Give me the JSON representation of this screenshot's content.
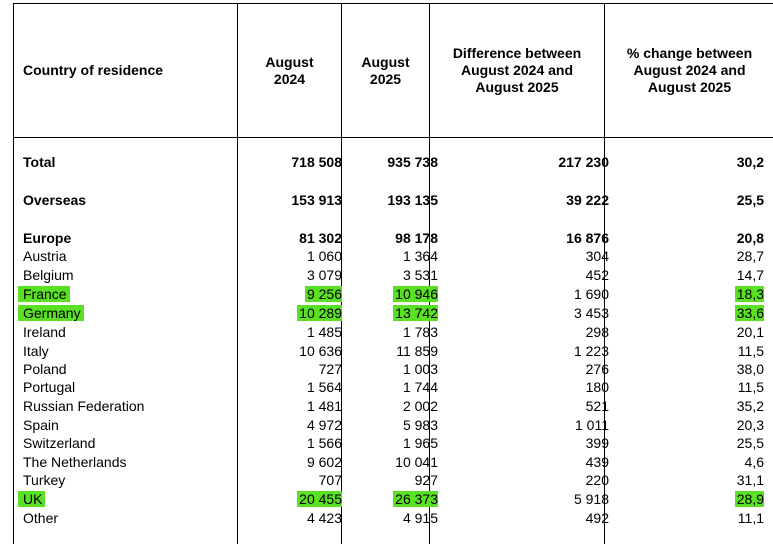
{
  "headers": {
    "country": "Country of residence",
    "aug2024": "August\n2024",
    "aug2025": "August\n2025",
    "difference": "Difference between\nAugust 2024 and\nAugust 2025",
    "pct_change": "% change between\nAugust 2024 and\nAugust 2025"
  },
  "rows": [
    {
      "name": "Total",
      "a": "718 508",
      "b": "935 738",
      "d": "217 230",
      "p": "30,2"
    },
    {
      "name": "Overseas",
      "a": "153 913",
      "b": "193 135",
      "d": "39 222",
      "p": "25,5"
    },
    {
      "name": "Europe",
      "a": "81 302",
      "b": "98 178",
      "d": "16 876",
      "p": "20,8"
    },
    {
      "name": "Austria",
      "a": "1 060",
      "b": "1 364",
      "d": "304",
      "p": "28,7"
    },
    {
      "name": "Belgium",
      "a": "3 079",
      "b": "3 531",
      "d": "452",
      "p": "14,7"
    },
    {
      "name": "France",
      "a": "9 256",
      "b": "10 946",
      "d": "1 690",
      "p": "18,3"
    },
    {
      "name": "Germany",
      "a": "10 289",
      "b": "13 742",
      "d": "3 453",
      "p": "33,6"
    },
    {
      "name": "Ireland",
      "a": "1 485",
      "b": "1 783",
      "d": "298",
      "p": "20,1"
    },
    {
      "name": "Italy",
      "a": "10 636",
      "b": "11 859",
      "d": "1 223",
      "p": "11,5"
    },
    {
      "name": "Poland",
      "a": "727",
      "b": "1 003",
      "d": "276",
      "p": "38,0"
    },
    {
      "name": "Portugal",
      "a": "1 564",
      "b": "1 744",
      "d": "180",
      "p": "11,5"
    },
    {
      "name": "Russian Federation",
      "a": "1 481",
      "b": "2 002",
      "d": "521",
      "p": "35,2"
    },
    {
      "name": "Spain",
      "a": "4 972",
      "b": "5 983",
      "d": "1 011",
      "p": "20,3"
    },
    {
      "name": "Switzerland",
      "a": "1 566",
      "b": "1 965",
      "d": "399",
      "p": "25,5"
    },
    {
      "name": "The Netherlands",
      "a": "9 602",
      "b": "10 041",
      "d": "439",
      "p": "4,6"
    },
    {
      "name": "Turkey",
      "a": "707",
      "b": "927",
      "d": "220",
      "p": "31,1"
    },
    {
      "name": "UK",
      "a": "20 455",
      "b": "26 373",
      "d": "5 918",
      "p": "28,9"
    },
    {
      "name": "Other",
      "a": "4 423",
      "b": "4 915",
      "d": "492",
      "p": "11,1"
    }
  ],
  "highlight_color": "#5ae024"
}
